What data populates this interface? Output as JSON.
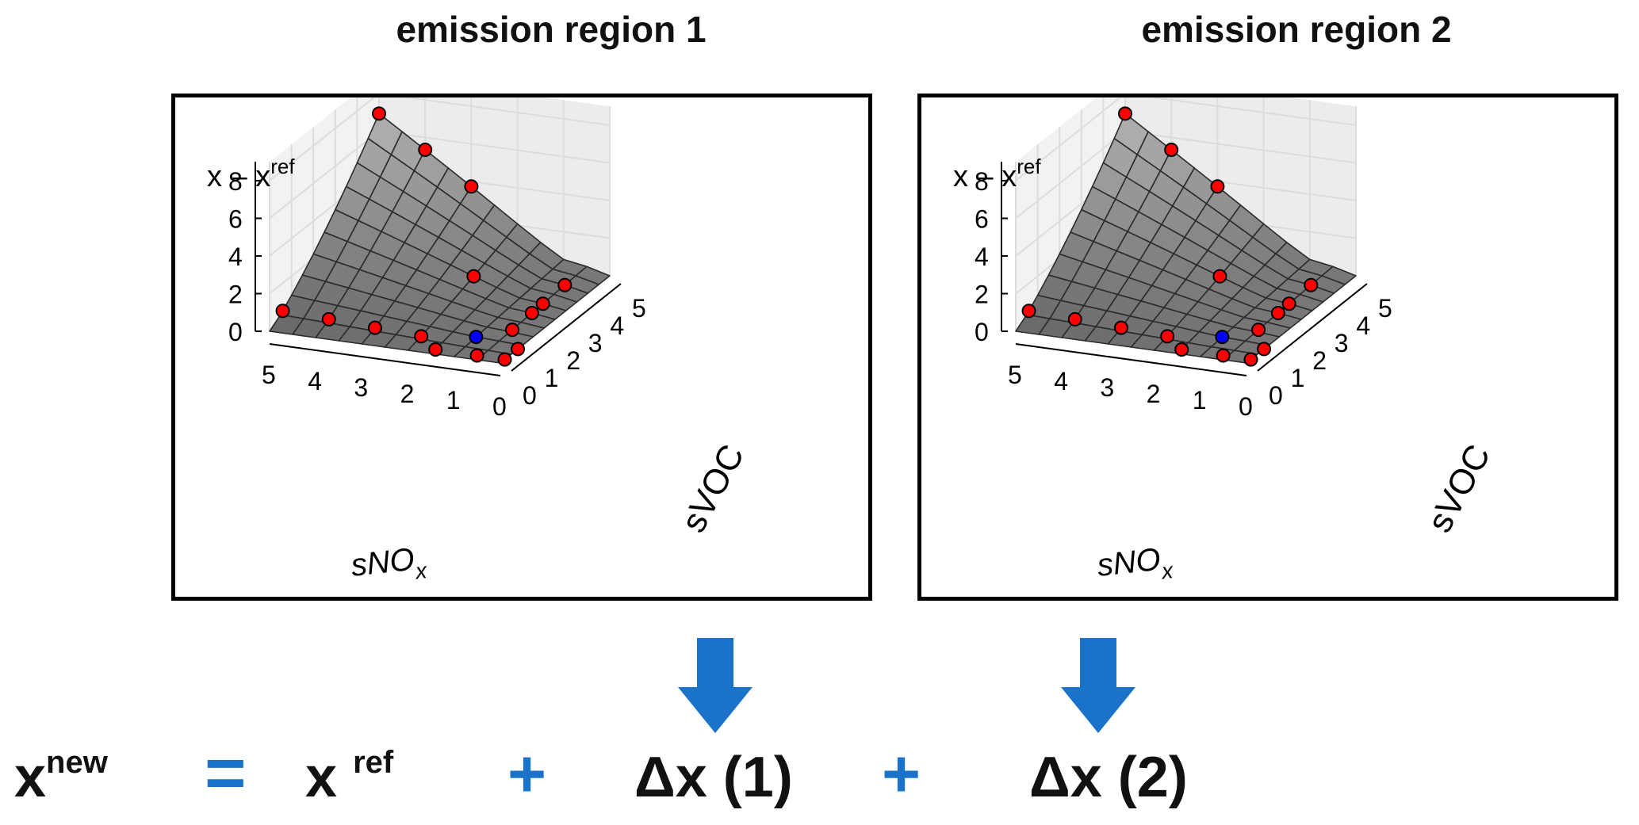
{
  "panels": [
    {
      "title": "emission region 1",
      "z_label": "x – x",
      "z_label_sup": "ref",
      "x_label": "sNO",
      "x_label_sub": "x",
      "y_label": "sVOC",
      "z_ticks": [
        "0",
        "2",
        "4",
        "6",
        "8"
      ],
      "x_ticks": [
        "5",
        "4",
        "3",
        "2",
        "1",
        "0"
      ],
      "y_ticks": [
        "0",
        "1",
        "2",
        "3",
        "4",
        "5"
      ]
    },
    {
      "title": "emission region 2",
      "z_label": "x – x",
      "z_label_sup": "ref",
      "x_label": "sNO",
      "x_label_sub": "x",
      "y_label": "sVOC",
      "z_ticks": [
        "0",
        "2",
        "4",
        "6",
        "8"
      ],
      "x_ticks": [
        "5",
        "4",
        "3",
        "2",
        "1",
        "0"
      ],
      "y_ticks": [
        "0",
        "1",
        "2",
        "3",
        "4",
        "5"
      ]
    }
  ],
  "equation": {
    "lhs": "x",
    "lhs_sup": "new",
    "equals": "=",
    "term_ref": "x",
    "term_ref_sup": "ref",
    "plus_1": "+",
    "term_1": "Δx (1)",
    "plus_2": "+",
    "term_2": "Δx (2)"
  },
  "colors": {
    "accent": "#1a73c8",
    "sample_point": "#ff0000",
    "reference_point": "#0000ff",
    "surface": "#8c8c8c"
  }
}
